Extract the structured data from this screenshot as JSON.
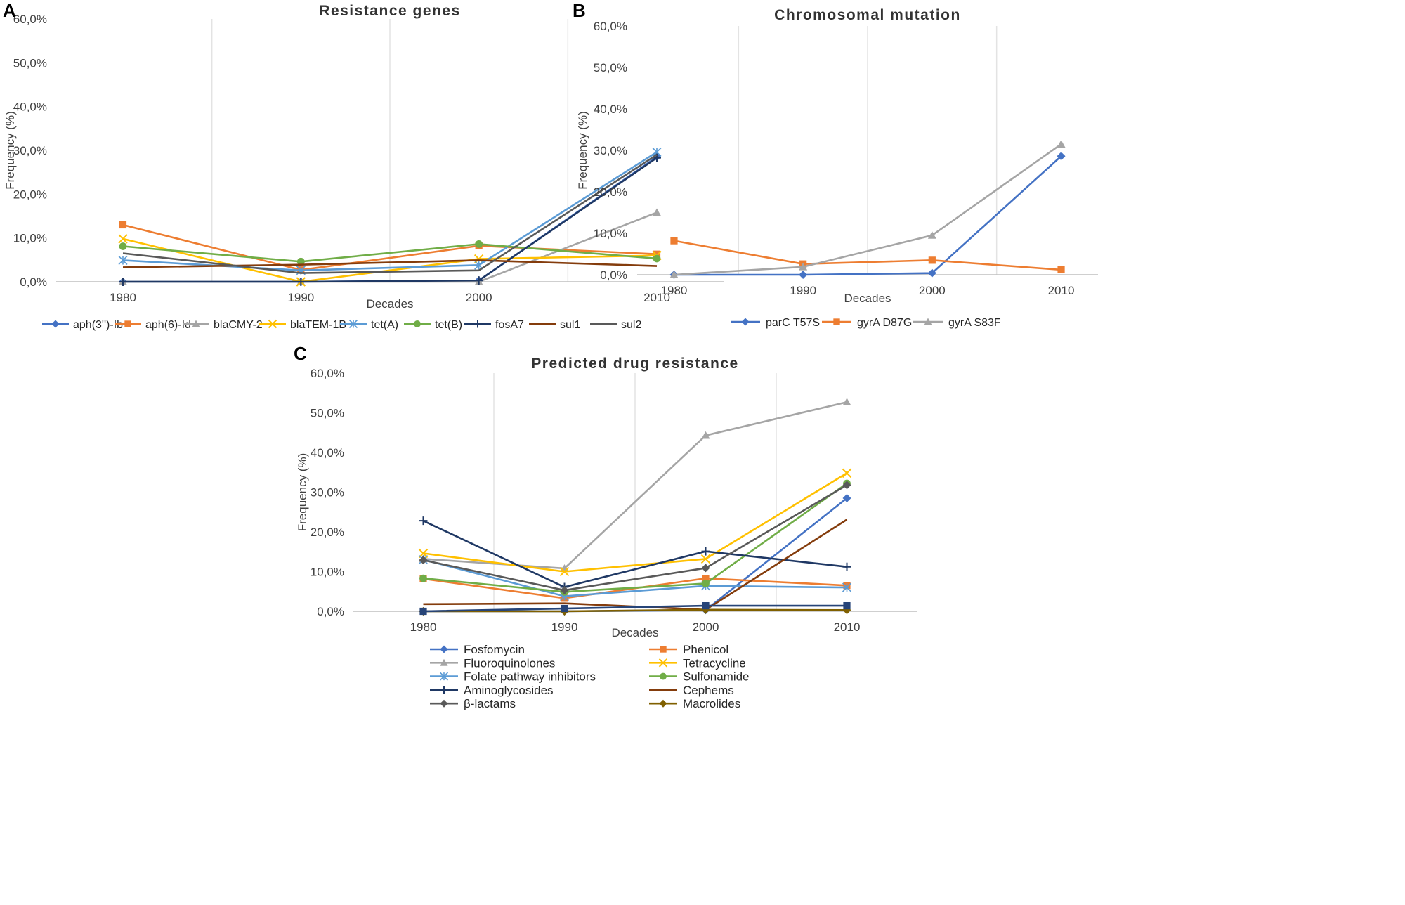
{
  "chart_data": [
    {
      "panel": "A",
      "type": "line",
      "title": "Resistance genes",
      "xlabel": "Decades",
      "ylabel": "Frequency (%)",
      "categories": [
        "1980",
        "1990",
        "2000",
        "2010"
      ],
      "ylim": [
        0,
        60
      ],
      "yticks": [
        "0,0%",
        "10,0%",
        "20,0%",
        "30,0%",
        "40,0%",
        "50,0%",
        "60,0%"
      ],
      "legend_position": "bottom",
      "series": [
        {
          "name": "aph(3'')-Ib",
          "color": "#4472C4",
          "marker": "diamond",
          "values": [
            0,
            0,
            0.3,
            28.5
          ]
        },
        {
          "name": "aph(6)-Id",
          "color": "#ED7D31",
          "marker": "square",
          "values": [
            13.0,
            2.7,
            8.2,
            6.3
          ]
        },
        {
          "name": "blaCMY-2",
          "color": "#A5A5A5",
          "marker": "triangle",
          "values": [
            0,
            0,
            0,
            15.8
          ]
        },
        {
          "name": "blaTEM-1B",
          "color": "#FFC000",
          "marker": "x",
          "values": [
            9.8,
            0,
            5.2,
            6.0
          ]
        },
        {
          "name": "tet(A)",
          "color": "#5B9BD5",
          "marker": "asterisk",
          "values": [
            4.9,
            2.6,
            3.8,
            29.6
          ]
        },
        {
          "name": "tet(B)",
          "color": "#70AD47",
          "marker": "circle",
          "values": [
            8.1,
            4.6,
            8.6,
            5.3
          ]
        },
        {
          "name": "fosA7",
          "color": "#1F3864",
          "marker": "plus",
          "values": [
            0,
            0,
            0.3,
            28.3
          ]
        },
        {
          "name": "sul1",
          "color": "#843C0C",
          "marker": "none",
          "values": [
            3.3,
            3.9,
            4.9,
            3.6
          ]
        },
        {
          "name": "sul2",
          "color": "#595959",
          "marker": "none",
          "values": [
            6.5,
            2.0,
            2.6,
            29.0
          ]
        }
      ]
    },
    {
      "panel": "B",
      "type": "line",
      "title": "Chromosomal mutation",
      "xlabel": "Decades",
      "ylabel": "Frequency (%)",
      "categories": [
        "1980",
        "1990",
        "2000",
        "2010"
      ],
      "ylim": [
        0,
        60
      ],
      "yticks": [
        "0,0%",
        "10,0%",
        "20,0%",
        "30,0%",
        "40,0%",
        "50,0%",
        "60,0%"
      ],
      "legend_position": "bottom",
      "series": [
        {
          "name": "parC T57S",
          "color": "#4472C4",
          "marker": "diamond",
          "values": [
            0,
            0,
            0.4,
            28.6
          ]
        },
        {
          "name": "gyrA D87G",
          "color": "#ED7D31",
          "marker": "square",
          "values": [
            8.2,
            2.6,
            3.5,
            1.2
          ]
        },
        {
          "name": "gyrA S83F",
          "color": "#A5A5A5",
          "marker": "triangle",
          "values": [
            0,
            1.9,
            9.5,
            31.5
          ]
        }
      ]
    },
    {
      "panel": "C",
      "type": "line",
      "title": "Predicted drug resistance",
      "xlabel": "Decades",
      "ylabel": "Frequency (%)",
      "categories": [
        "1980",
        "1990",
        "2000",
        "2010"
      ],
      "ylim": [
        0,
        60
      ],
      "yticks": [
        "0,0%",
        "10,0%",
        "20,0%",
        "30,0%",
        "40,0%",
        "50,0%",
        "60,0%"
      ],
      "legend_position": "bottom",
      "series": [
        {
          "name": "Fosfomycin",
          "color": "#4472C4",
          "marker": "diamond",
          "values": [
            0,
            0,
            0.3,
            28.5
          ]
        },
        {
          "name": "Phenicol",
          "color": "#ED7D31",
          "marker": "square",
          "values": [
            8.2,
            3.3,
            8.3,
            6.5
          ]
        },
        {
          "name": "Fluoroquinolones",
          "color": "#A5A5A5",
          "marker": "triangle",
          "values": [
            13.2,
            10.8,
            44.3,
            52.7
          ]
        },
        {
          "name": "Tetracycline",
          "color": "#FFC000",
          "marker": "x",
          "values": [
            14.6,
            10.0,
            13.2,
            34.8
          ]
        },
        {
          "name": "Folate pathway inhibitors",
          "color": "#5B9BD5",
          "marker": "asterisk",
          "values": [
            13.0,
            3.8,
            6.4,
            6.0
          ]
        },
        {
          "name": "Sulfonamide",
          "color": "#70AD47",
          "marker": "circle",
          "values": [
            8.3,
            4.9,
            7.0,
            32.2
          ]
        },
        {
          "name": "Aminoglycosides",
          "color": "#1F3864",
          "marker": "plus",
          "values": [
            22.8,
            6.1,
            15.1,
            11.2
          ]
        },
        {
          "name": "Cephems",
          "color": "#843C0C",
          "marker": "none",
          "values": [
            1.8,
            2.0,
            0.4,
            23.1
          ]
        },
        {
          "name": "β-lactams",
          "color": "#595959",
          "marker": "diamond",
          "values": [
            12.9,
            5.3,
            10.9,
            31.8
          ]
        },
        {
          "name": "Macrolides",
          "color": "#806000",
          "marker": "diamond",
          "values": [
            0,
            0,
            0.4,
            0.3
          ]
        },
        {
          "name": "",
          "color": "#264478",
          "marker": "square",
          "values": [
            0,
            0.7,
            1.4,
            1.4
          ]
        }
      ]
    }
  ]
}
